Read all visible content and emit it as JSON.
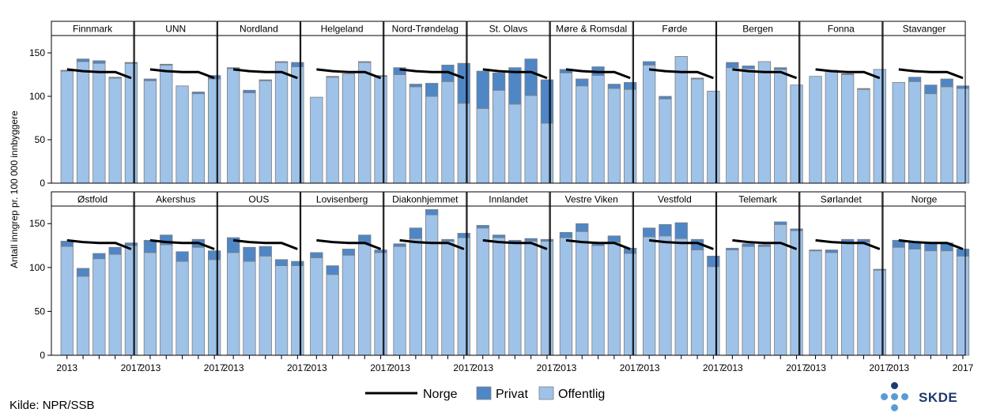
{
  "chart_data": {
    "type": "bar",
    "layout": "small-multiples",
    "stacked": true,
    "ylabel": "Antall inngrep pr. 100 000 innbyggere",
    "ylim": [
      0,
      170
    ],
    "yticks": [
      0,
      50,
      100,
      150
    ],
    "years": [
      2013,
      2014,
      2015,
      2016,
      2017
    ],
    "x_tick_labels": [
      "2013",
      "2017"
    ],
    "norge_line": [
      131,
      129,
      128,
      128,
      121
    ],
    "legend": [
      {
        "name": "Norge",
        "kind": "line",
        "color": "#000000"
      },
      {
        "name": "Privat",
        "kind": "bar",
        "color": "#4f86c6"
      },
      {
        "name": "Offentlig",
        "kind": "bar",
        "color": "#9fc2e8"
      }
    ],
    "panels": [
      {
        "name": "Finnmark",
        "offentlig": [
          129,
          140,
          138,
          121,
          138
        ],
        "privat": [
          1,
          3,
          3,
          1,
          1
        ]
      },
      {
        "name": "UNN",
        "offentlig": [
          118,
          136,
          112,
          103,
          120
        ],
        "privat": [
          2,
          1,
          0,
          2,
          4
        ]
      },
      {
        "name": "Nordland",
        "offentlig": [
          132,
          104,
          118,
          139,
          134
        ],
        "privat": [
          1,
          3,
          1,
          1,
          5
        ]
      },
      {
        "name": "Helgeland",
        "offentlig": [
          99,
          122,
          126,
          139,
          123
        ],
        "privat": [
          0,
          1,
          0,
          1,
          1
        ]
      },
      {
        "name": "Nord-Trøndelag",
        "offentlig": [
          125,
          111,
          100,
          117,
          92
        ],
        "privat": [
          8,
          3,
          15,
          19,
          46
        ]
      },
      {
        "name": "St. Olavs",
        "offentlig": [
          86,
          107,
          91,
          101,
          69
        ],
        "privat": [
          43,
          20,
          42,
          42,
          50
        ]
      },
      {
        "name": "Møre & Romsdal",
        "offentlig": [
          127,
          112,
          124,
          109,
          108
        ],
        "privat": [
          4,
          8,
          10,
          5,
          8
        ]
      },
      {
        "name": "Førde",
        "offentlig": [
          136,
          97,
          146,
          120,
          106
        ],
        "privat": [
          4,
          3,
          0,
          1,
          0
        ]
      },
      {
        "name": "Bergen",
        "offentlig": [
          133,
          132,
          140,
          131,
          113
        ],
        "privat": [
          6,
          3,
          0,
          2,
          0
        ]
      },
      {
        "name": "Fonna",
        "offentlig": [
          123,
          129,
          125,
          108,
          131
        ],
        "privat": [
          0,
          1,
          1,
          1,
          0
        ]
      },
      {
        "name": "Stavanger",
        "offentlig": [
          116,
          117,
          103,
          111,
          109
        ],
        "privat": [
          0,
          5,
          10,
          9,
          3
        ]
      },
      {
        "name": "Østfold",
        "offentlig": [
          124,
          90,
          110,
          115,
          125
        ],
        "privat": [
          6,
          9,
          6,
          8,
          3
        ]
      },
      {
        "name": "Akershus",
        "offentlig": [
          117,
          126,
          107,
          123,
          109
        ],
        "privat": [
          14,
          11,
          11,
          9,
          10
        ]
      },
      {
        "name": "OUS",
        "offentlig": [
          117,
          107,
          113,
          102,
          102
        ],
        "privat": [
          17,
          16,
          11,
          7,
          5
        ]
      },
      {
        "name": "Lovisenberg",
        "offentlig": [
          111,
          92,
          114,
          127,
          117
        ],
        "privat": [
          6,
          10,
          7,
          10,
          3
        ]
      },
      {
        "name": "Diakonhjemmet",
        "offentlig": [
          124,
          133,
          160,
          130,
          134
        ],
        "privat": [
          3,
          12,
          6,
          2,
          5
        ]
      },
      {
        "name": "Innlandet",
        "offentlig": [
          145,
          134,
          129,
          130,
          130
        ],
        "privat": [
          3,
          3,
          2,
          3,
          2
        ]
      },
      {
        "name": "Vestre Viken",
        "offentlig": [
          134,
          141,
          125,
          129,
          116
        ],
        "privat": [
          6,
          9,
          3,
          7,
          6
        ]
      },
      {
        "name": "Vestfold",
        "offentlig": [
          135,
          136,
          133,
          120,
          101
        ],
        "privat": [
          10,
          13,
          18,
          12,
          12
        ]
      },
      {
        "name": "Telemark",
        "offentlig": [
          120,
          124,
          124,
          149,
          142
        ],
        "privat": [
          2,
          3,
          2,
          3,
          2
        ]
      },
      {
        "name": "Sørlandet",
        "offentlig": [
          119,
          117,
          129,
          129,
          97
        ],
        "privat": [
          1,
          3,
          3,
          3,
          1
        ]
      },
      {
        "name": "Norge",
        "offentlig": [
          123,
          121,
          119,
          119,
          113
        ],
        "privat": [
          8,
          8,
          9,
          9,
          8
        ]
      }
    ]
  },
  "source_text": "Kilde: NPR/SSB",
  "logo_text": "SKDE",
  "colors": {
    "privat": "#4f86c6",
    "offentlig": "#9fc2e8",
    "bar_edge": "#7f7f7f",
    "norge_line": "#000000",
    "strip_bg": "#ffffff",
    "logo_dark": "#1f3a6e",
    "logo_light": "#5b9bd5"
  }
}
